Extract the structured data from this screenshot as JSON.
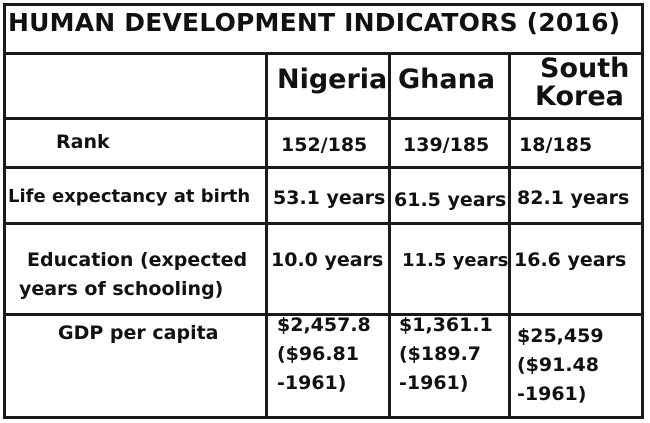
{
  "title": "HUMAN DEVELOPMENT INDICATORS (2016)",
  "columns": [
    "Nigeria",
    "Ghana",
    "South Korea"
  ],
  "column_header_lines": {
    "south_korea": [
      "South",
      "Korea"
    ]
  },
  "rows": [
    {
      "label": "Rank",
      "nigeria": "152/185",
      "ghana": "139/185",
      "south_korea": "18/185"
    },
    {
      "label": "Life expectancy at birth",
      "nigeria": "53.1 years",
      "ghana": "61.5 years",
      "south_korea": "82.1 years"
    },
    {
      "label_lines": [
        "Education (expected",
        "years of schooling)"
      ],
      "nigeria": "10.0 years",
      "ghana": "11.5 years",
      "south_korea": "16.6 years"
    },
    {
      "label": "GDP per capita",
      "nigeria_lines": [
        "$2,457.8",
        "($96.81",
        "-1961)"
      ],
      "ghana_lines": [
        "$1,361.1",
        "($189.7",
        "-1961)"
      ],
      "south_korea_lines": [
        "$25,459",
        "($91.48",
        "-1961)"
      ]
    }
  ]
}
